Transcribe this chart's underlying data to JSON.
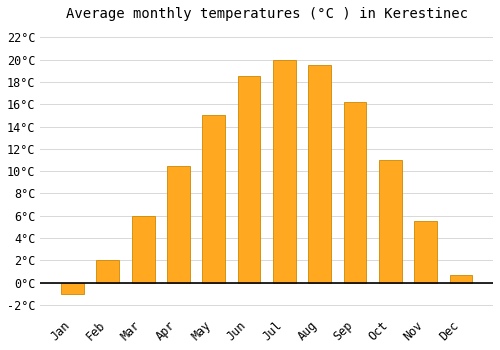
{
  "months": [
    "Jan",
    "Feb",
    "Mar",
    "Apr",
    "May",
    "Jun",
    "Jul",
    "Aug",
    "Sep",
    "Oct",
    "Nov",
    "Dec"
  ],
  "values": [
    -1.0,
    2.0,
    6.0,
    10.5,
    15.0,
    18.5,
    20.0,
    19.5,
    16.2,
    11.0,
    5.5,
    0.7
  ],
  "bar_color": "#FFA820",
  "bar_edge_color": "#CC8800",
  "title": "Average monthly temperatures (°C ) in Kerestinec",
  "ylim": [
    -2.8,
    23.0
  ],
  "yticks": [
    -2,
    0,
    2,
    4,
    6,
    8,
    10,
    12,
    14,
    16,
    18,
    20,
    22
  ],
  "background_color": "#ffffff",
  "plot_bg_color": "#ffffff",
  "grid_color": "#d8d8d8",
  "title_fontsize": 10,
  "tick_fontsize": 8.5,
  "bar_width": 0.65
}
